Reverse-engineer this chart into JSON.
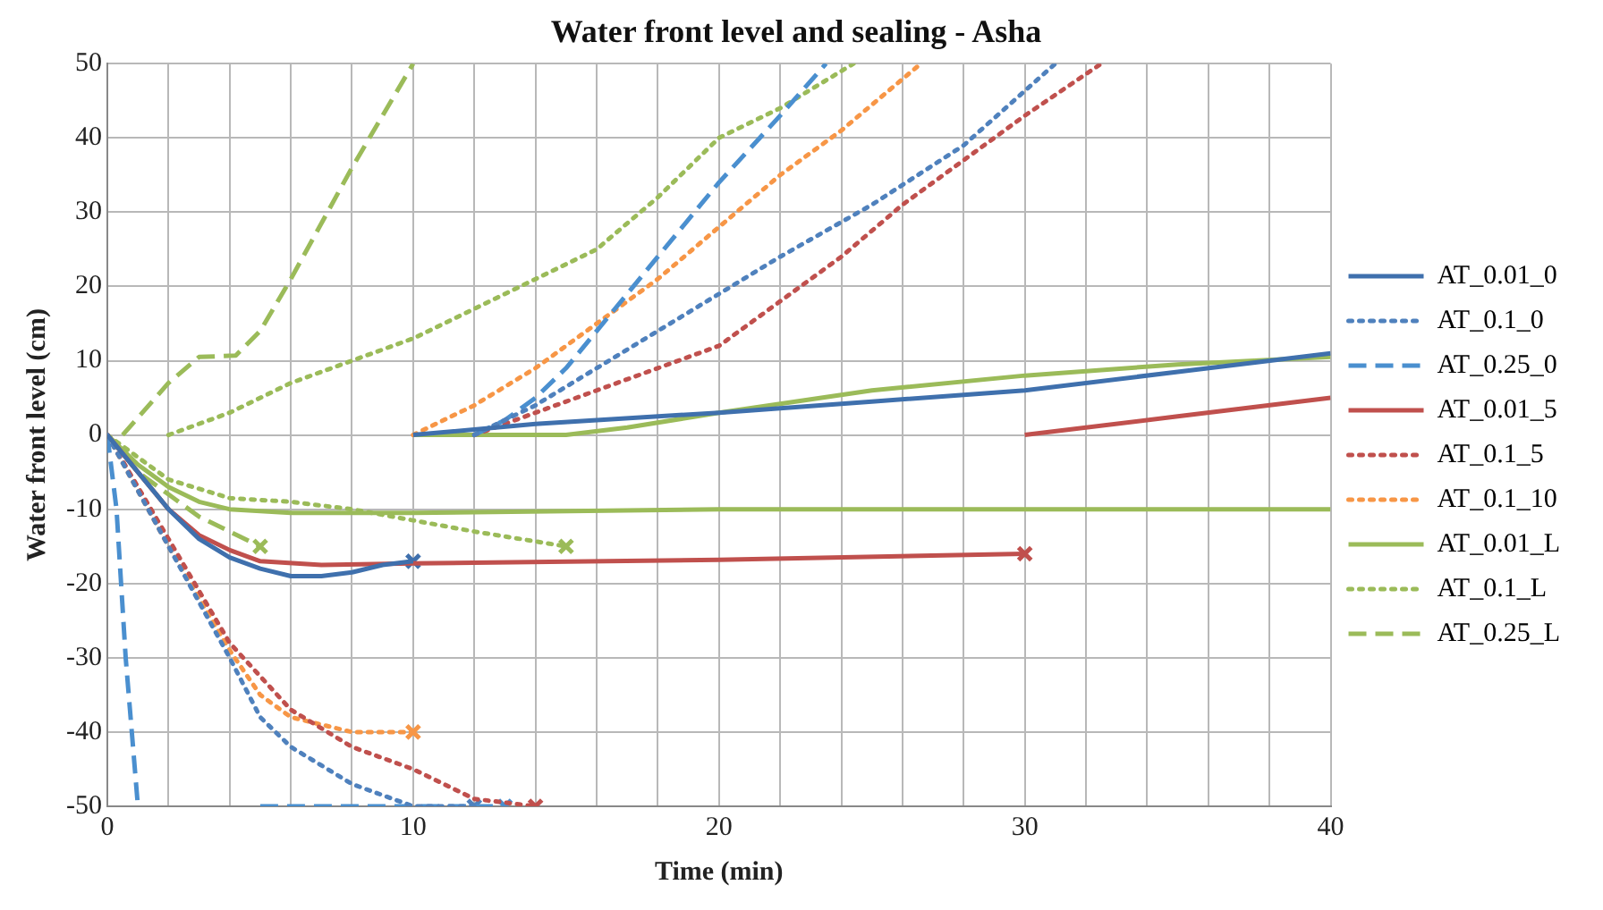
{
  "chart_data": {
    "type": "line",
    "title": "Water front level and sealing - Asha",
    "xlabel": "Time (min)",
    "ylabel": "Water front level (cm)",
    "xlim": [
      0,
      40
    ],
    "ylim": [
      -50,
      50
    ],
    "xticks": [
      0,
      {
        "value": 2,
        "label": null
      },
      {
        "value": 4,
        "label": null
      },
      {
        "value": 6,
        "label": null
      },
      {
        "value": 8,
        "label": null
      },
      10,
      {
        "value": 12,
        "label": null
      },
      {
        "value": 14,
        "label": null
      },
      {
        "value": 16,
        "label": null
      },
      {
        "value": 18,
        "label": null
      },
      20,
      {
        "value": 22,
        "label": null
      },
      {
        "value": 24,
        "label": null
      },
      {
        "value": 26,
        "label": null
      },
      {
        "value": 28,
        "label": null
      },
      30,
      {
        "value": 32,
        "label": null
      },
      {
        "value": 34,
        "label": null
      },
      {
        "value": 36,
        "label": null
      },
      {
        "value": 38,
        "label": null
      },
      40
    ],
    "yticks": [
      -50,
      -40,
      -30,
      -20,
      -10,
      0,
      10,
      20,
      30,
      40,
      50
    ],
    "grid": true,
    "legend": "right",
    "marker": "none",
    "series": [
      {
        "name": "AT_0.01_0",
        "color": "#3f70ad",
        "line_style": "solid",
        "x": [
          0,
          1,
          2,
          3,
          4,
          5,
          6,
          7,
          8,
          9,
          10,
          null,
          10,
          14,
          16,
          20,
          25,
          30,
          35,
          40
        ],
        "values": [
          0,
          -5,
          -10,
          -14,
          -16.5,
          -18,
          -19,
          -19,
          -18.5,
          -17.5,
          -17,
          null,
          0,
          1.5,
          2,
          3,
          4.5,
          6,
          8.5,
          11
        ]
      },
      {
        "name": "AT_0.1_0",
        "color": "#4f81bd",
        "line_style": "dotted",
        "x": [
          0,
          2,
          4,
          5,
          6,
          8,
          10,
          12,
          null,
          12,
          14,
          16,
          18,
          20,
          22,
          25,
          28,
          31
        ],
        "values": [
          0,
          -15,
          -30,
          -38,
          -42,
          -47,
          -50,
          -50,
          null,
          0,
          4,
          9,
          14,
          19,
          24,
          31,
          39,
          50
        ]
      },
      {
        "name": "AT_0.25_0",
        "color": "#4a8fcf",
        "line_style": "dashed",
        "x": [
          0,
          0.3,
          0.6,
          1,
          null,
          5,
          13,
          null,
          12,
          13,
          14,
          15,
          16,
          18,
          20,
          22,
          23.5
        ],
        "values": [
          0,
          -10,
          -30,
          -50,
          null,
          -50,
          -50,
          null,
          0,
          2,
          5,
          9,
          14,
          24,
          34,
          43,
          50
        ]
      },
      {
        "name": "AT_0.01_5",
        "color": "#c0504d",
        "line_style": "solid",
        "x": [
          0,
          1,
          2,
          3,
          4,
          5,
          7,
          10,
          20,
          30,
          null,
          30,
          35,
          40
        ],
        "values": [
          0,
          -5,
          -10,
          -13.5,
          -15.5,
          -17,
          -17.5,
          -17.3,
          -16.8,
          -16,
          null,
          0,
          2.5,
          5
        ]
      },
      {
        "name": "AT_0.1_5",
        "color": "#c0504d",
        "line_style": "dotted",
        "x": [
          0,
          2,
          4,
          6,
          8,
          10,
          12,
          14,
          null,
          12,
          14,
          16,
          18,
          20,
          22,
          24,
          26,
          28,
          30,
          32.5
        ],
        "values": [
          0,
          -14,
          -28,
          -37,
          -42,
          -45,
          -49,
          -50,
          null,
          0,
          3,
          6,
          9,
          12,
          18,
          24,
          31,
          37,
          43,
          50
        ]
      },
      {
        "name": "AT_0.1_10",
        "color": "#f79646",
        "line_style": "dotted",
        "x": [
          0,
          2,
          4,
          5,
          6,
          8,
          10,
          null,
          10,
          12,
          14,
          16,
          18,
          20,
          22,
          24,
          26.6
        ],
        "values": [
          0,
          -15,
          -29,
          -35,
          -38,
          -40,
          -40,
          null,
          0,
          4,
          9,
          15,
          21,
          28,
          35,
          41,
          50
        ]
      },
      {
        "name": "AT_0.01_L",
        "color": "#9bbb59",
        "line_style": "solid",
        "x": [
          0,
          1,
          2,
          3,
          4,
          6,
          10,
          20,
          40,
          null,
          10,
          15,
          17,
          20,
          25,
          30,
          35,
          40
        ],
        "values": [
          0,
          -4,
          -7,
          -9,
          -10,
          -10.5,
          -10.5,
          -10,
          -10,
          null,
          0,
          0,
          1,
          3,
          6,
          8,
          9.5,
          10.5
        ]
      },
      {
        "name": "AT_0.1_L",
        "color": "#9bbb59",
        "line_style": "dotted",
        "x": [
          0,
          2,
          4,
          6,
          8,
          10,
          12,
          15,
          null,
          2,
          4,
          6,
          8,
          10,
          12,
          14,
          16,
          18,
          20,
          22,
          24.4
        ],
        "values": [
          0,
          -6,
          -8.5,
          -9,
          -10,
          -11.5,
          -13,
          -15,
          null,
          0,
          3,
          7,
          10,
          13,
          17,
          21,
          25,
          32,
          40,
          44,
          50
        ]
      },
      {
        "name": "AT_0.25_L",
        "color": "#9bbb59",
        "line_style": "dashed",
        "x": [
          0,
          1,
          2,
          3,
          4,
          5,
          null,
          0.5,
          2,
          3,
          4.2,
          5,
          6,
          8,
          10
        ],
        "values": [
          0,
          -5,
          -8,
          -11,
          -13,
          -15,
          null,
          0,
          7,
          10.5,
          10.7,
          14,
          21,
          36,
          50
        ]
      },
      {
        "type": "scatter",
        "marker": "cross",
        "x": [
          10,
          12,
          13,
          14,
          30,
          10,
          15,
          5
        ],
        "values": [
          -17,
          -50,
          -50,
          -50,
          -16,
          -40,
          -15,
          -15
        ],
        "colors": [
          "#3f70ad",
          "#4f81bd",
          "#4a8fcf",
          "#c0504d",
          "#c0504d",
          "#f79646",
          "#9bbb59",
          "#9bbb59"
        ]
      }
    ]
  }
}
